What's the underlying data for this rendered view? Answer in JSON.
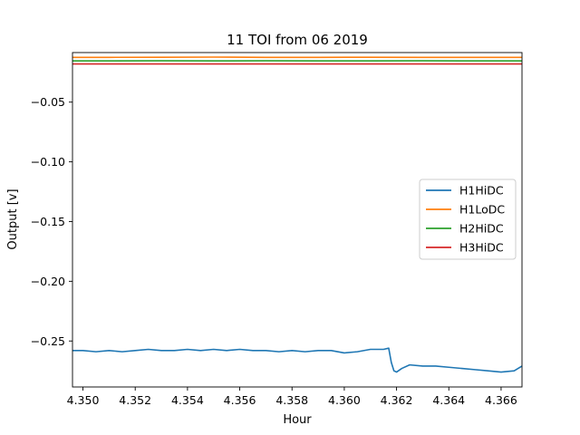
{
  "chart_data": {
    "type": "line",
    "title": "11 TOI from 06 2019",
    "xlabel": "Hour",
    "ylabel": "Output [v]",
    "xlim": [
      4.3496,
      4.3668
    ],
    "ylim": [
      -0.2885,
      -0.0085
    ],
    "xticks": [
      4.35,
      4.352,
      4.354,
      4.356,
      4.358,
      4.36,
      4.362,
      4.364,
      4.366
    ],
    "xtick_labels": [
      "4.350",
      "4.352",
      "4.354",
      "4.356",
      "4.358",
      "4.360",
      "4.362",
      "4.364",
      "4.366"
    ],
    "yticks": [
      -0.05,
      -0.1,
      -0.15,
      -0.2,
      -0.25
    ],
    "ytick_labels": [
      "−0.05",
      "−0.10",
      "−0.15",
      "−0.20",
      "−0.25"
    ],
    "grid": false,
    "legend_position": "center-right",
    "series": [
      {
        "name": "H1HiDC",
        "color": "#1f77b4",
        "x": [
          4.3496,
          4.35,
          4.3505,
          4.351,
          4.3515,
          4.352,
          4.3525,
          4.353,
          4.3535,
          4.354,
          4.3545,
          4.355,
          4.3555,
          4.356,
          4.3565,
          4.357,
          4.3575,
          4.358,
          4.3585,
          4.359,
          4.3595,
          4.36,
          4.3605,
          4.361,
          4.3615,
          4.3617,
          4.3618,
          4.3619,
          4.362,
          4.3622,
          4.3625,
          4.363,
          4.3635,
          4.364,
          4.3645,
          4.365,
          4.3655,
          4.366,
          4.3665,
          4.3668
        ],
        "y": [
          -0.258,
          -0.258,
          -0.259,
          -0.258,
          -0.259,
          -0.258,
          -0.257,
          -0.258,
          -0.258,
          -0.257,
          -0.258,
          -0.257,
          -0.258,
          -0.257,
          -0.258,
          -0.258,
          -0.259,
          -0.258,
          -0.259,
          -0.258,
          -0.258,
          -0.26,
          -0.259,
          -0.257,
          -0.257,
          -0.256,
          -0.268,
          -0.275,
          -0.276,
          -0.273,
          -0.27,
          -0.271,
          -0.271,
          -0.272,
          -0.273,
          -0.274,
          -0.275,
          -0.276,
          -0.275,
          -0.271
        ]
      },
      {
        "name": "H1LoDC",
        "color": "#ff7f0e",
        "x": [
          4.3496,
          4.351,
          4.353,
          4.355,
          4.357,
          4.359,
          4.361,
          4.363,
          4.365,
          4.3668
        ],
        "y": [
          -0.0125,
          -0.0125,
          -0.0124,
          -0.0123,
          -0.0125,
          -0.0125,
          -0.0124,
          -0.0125,
          -0.0125,
          -0.0125
        ]
      },
      {
        "name": "H2HiDC",
        "color": "#2ca02c",
        "x": [
          4.3496,
          4.351,
          4.353,
          4.355,
          4.357,
          4.359,
          4.361,
          4.363,
          4.365,
          4.3668
        ],
        "y": [
          -0.0155,
          -0.0155,
          -0.0154,
          -0.0155,
          -0.0154,
          -0.0155,
          -0.0155,
          -0.0154,
          -0.0155,
          -0.0155
        ]
      },
      {
        "name": "H3HiDC",
        "color": "#d62728",
        "x": [
          4.3496,
          4.3668
        ],
        "y": [
          -0.018,
          -0.018
        ]
      }
    ]
  }
}
